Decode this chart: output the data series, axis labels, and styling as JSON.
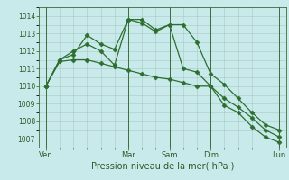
{
  "title": "",
  "xlabel": "Pression niveau de la mer( hPa )",
  "bg_color": "#c8eaea",
  "grid_color": "#a8c8c4",
  "line_color": "#2d6e30",
  "ylim": [
    1006.5,
    1014.5
  ],
  "yticks": [
    1007,
    1008,
    1009,
    1010,
    1011,
    1012,
    1013,
    1014
  ],
  "xtick_major_pos": [
    0,
    6,
    9,
    12,
    17
  ],
  "xtick_major_labels": [
    "Ven",
    "Mar",
    "Sam",
    "Dim",
    "Lun"
  ],
  "line1_x": [
    0,
    1,
    2,
    3,
    4,
    5,
    6,
    7,
    8,
    9,
    10,
    11,
    12,
    13,
    14,
    15,
    16,
    17
  ],
  "line1_y": [
    1010.0,
    1011.5,
    1012.0,
    1012.4,
    1012.0,
    1011.2,
    1013.8,
    1013.8,
    1013.2,
    1013.5,
    1013.5,
    1012.5,
    1010.7,
    1010.1,
    1009.3,
    1008.5,
    1007.8,
    1007.5
  ],
  "line2_x": [
    0,
    1,
    2,
    3,
    4,
    5,
    6,
    7,
    8,
    9,
    10,
    11,
    12,
    13,
    14,
    15,
    16,
    17
  ],
  "line2_y": [
    1010.0,
    1011.5,
    1011.8,
    1012.9,
    1012.4,
    1012.1,
    1013.8,
    1013.6,
    1013.1,
    1013.5,
    1011.0,
    1010.8,
    1010.0,
    1008.9,
    1008.5,
    1007.7,
    1007.1,
    1006.8
  ],
  "line3_x": [
    0,
    1,
    2,
    3,
    4,
    5,
    6,
    7,
    8,
    9,
    10,
    11,
    12,
    13,
    14,
    15,
    16,
    17
  ],
  "line3_y": [
    1010.0,
    1011.4,
    1011.5,
    1011.5,
    1011.3,
    1011.1,
    1010.9,
    1010.7,
    1010.5,
    1010.4,
    1010.2,
    1010.0,
    1010.0,
    1009.3,
    1008.8,
    1008.2,
    1007.5,
    1007.1
  ],
  "vline_positions": [
    0,
    6,
    9,
    12,
    17
  ],
  "marker": "D",
  "marker_size": 2.5,
  "linewidth": 0.9
}
